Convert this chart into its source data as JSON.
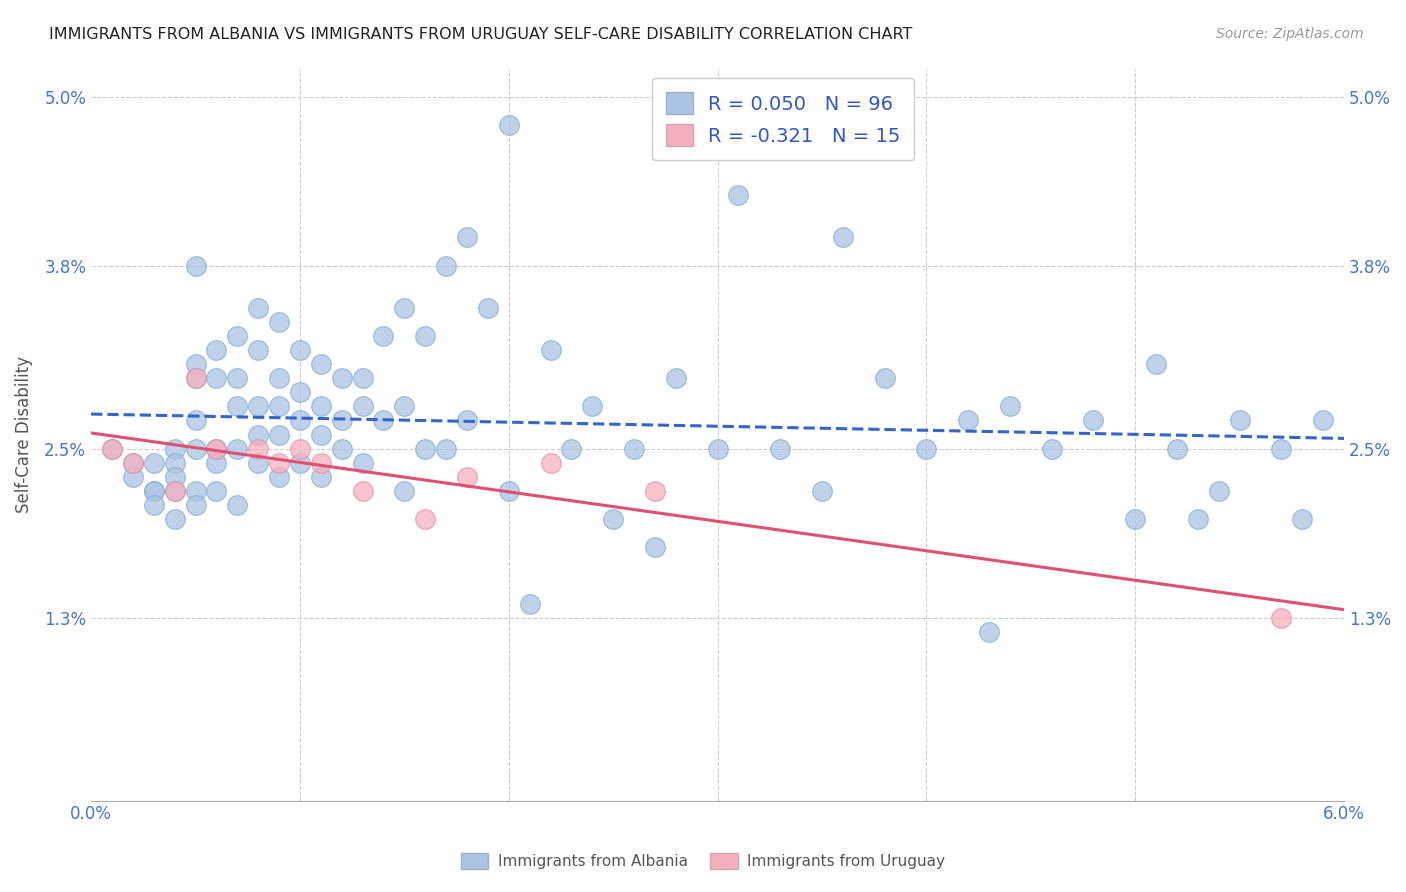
{
  "title": "IMMIGRANTS FROM ALBANIA VS IMMIGRANTS FROM URUGUAY SELF-CARE DISABILITY CORRELATION CHART",
  "source": "Source: ZipAtlas.com",
  "ylabel": "Self-Care Disability",
  "xlim": [
    0.0,
    0.06
  ],
  "ylim": [
    0.0,
    0.052
  ],
  "ytick_positions": [
    0.0,
    0.013,
    0.025,
    0.038,
    0.05
  ],
  "ytick_labels": [
    "",
    "1.3%",
    "2.5%",
    "3.8%",
    "5.0%"
  ],
  "xtick_positions": [
    0.0,
    0.01,
    0.02,
    0.03,
    0.04,
    0.05,
    0.06
  ],
  "xtick_labels": [
    "0.0%",
    "",
    "",
    "",
    "",
    "",
    "6.0%"
  ],
  "albania_R": 0.05,
  "albania_N": 96,
  "uruguay_R": -0.321,
  "uruguay_N": 15,
  "albania_color": "#aac4e2",
  "albania_edge": "#7aaad4",
  "uruguay_color": "#f5b0c0",
  "uruguay_edge": "#e888a0",
  "albania_line_color": "#3366cc",
  "uruguay_line_color": "#e05070",
  "background_color": "#ffffff",
  "grid_color": "#cccccc",
  "albania_x": [
    0.001,
    0.002,
    0.002,
    0.003,
    0.003,
    0.003,
    0.003,
    0.004,
    0.004,
    0.004,
    0.004,
    0.004,
    0.005,
    0.005,
    0.005,
    0.005,
    0.005,
    0.005,
    0.005,
    0.006,
    0.006,
    0.006,
    0.006,
    0.006,
    0.007,
    0.007,
    0.007,
    0.007,
    0.007,
    0.008,
    0.008,
    0.008,
    0.008,
    0.008,
    0.009,
    0.009,
    0.009,
    0.009,
    0.009,
    0.01,
    0.01,
    0.01,
    0.01,
    0.011,
    0.011,
    0.011,
    0.011,
    0.012,
    0.012,
    0.012,
    0.013,
    0.013,
    0.013,
    0.014,
    0.014,
    0.015,
    0.015,
    0.015,
    0.016,
    0.016,
    0.017,
    0.017,
    0.018,
    0.018,
    0.019,
    0.02,
    0.02,
    0.021,
    0.022,
    0.023,
    0.024,
    0.025,
    0.026,
    0.027,
    0.028,
    0.03,
    0.031,
    0.033,
    0.035,
    0.036,
    0.038,
    0.04,
    0.042,
    0.043,
    0.044,
    0.046,
    0.048,
    0.05,
    0.051,
    0.052,
    0.054,
    0.055,
    0.057,
    0.058,
    0.053,
    0.059
  ],
  "albania_y": [
    0.025,
    0.024,
    0.023,
    0.022,
    0.024,
    0.022,
    0.021,
    0.025,
    0.024,
    0.023,
    0.022,
    0.02,
    0.038,
    0.031,
    0.03,
    0.027,
    0.025,
    0.022,
    0.021,
    0.032,
    0.03,
    0.025,
    0.024,
    0.022,
    0.033,
    0.03,
    0.028,
    0.025,
    0.021,
    0.035,
    0.032,
    0.028,
    0.026,
    0.024,
    0.034,
    0.03,
    0.028,
    0.026,
    0.023,
    0.032,
    0.029,
    0.027,
    0.024,
    0.031,
    0.028,
    0.026,
    0.023,
    0.03,
    0.027,
    0.025,
    0.03,
    0.028,
    0.024,
    0.033,
    0.027,
    0.035,
    0.028,
    0.022,
    0.033,
    0.025,
    0.038,
    0.025,
    0.04,
    0.027,
    0.035,
    0.048,
    0.022,
    0.014,
    0.032,
    0.025,
    0.028,
    0.02,
    0.025,
    0.018,
    0.03,
    0.025,
    0.043,
    0.025,
    0.022,
    0.04,
    0.03,
    0.025,
    0.027,
    0.012,
    0.028,
    0.025,
    0.027,
    0.02,
    0.031,
    0.025,
    0.022,
    0.027,
    0.025,
    0.02,
    0.02,
    0.027
  ],
  "uruguay_x": [
    0.001,
    0.002,
    0.004,
    0.005,
    0.006,
    0.008,
    0.009,
    0.01,
    0.011,
    0.013,
    0.016,
    0.018,
    0.022,
    0.027,
    0.057
  ],
  "uruguay_y": [
    0.025,
    0.024,
    0.022,
    0.03,
    0.025,
    0.025,
    0.024,
    0.025,
    0.024,
    0.022,
    0.02,
    0.023,
    0.024,
    0.022,
    0.013
  ]
}
